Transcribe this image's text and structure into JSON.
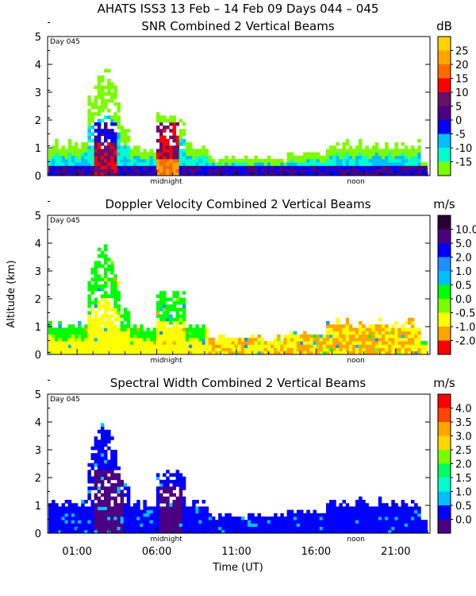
{
  "figure": {
    "title": "AHATS ISS3  13 Feb – 14 Feb 09 Days 044 – 045",
    "shared_ylabel": "Altitude (km)",
    "shared_xlabel": "Time (UT)",
    "x_tick_labels": [
      "01:00",
      "06:00",
      "11:00",
      "16:00",
      "21:00"
    ],
    "y_tick_labels": [
      "0",
      "1",
      "2",
      "3",
      "4",
      "5"
    ],
    "day_label": "Day 045",
    "midnight_label": "midnight",
    "noon_label": "noon"
  },
  "colors": {
    "palette": [
      "#4B0082",
      "#3b1a8e",
      "#0000ff",
      "#1e90ff",
      "#00bfff",
      "#00ff00",
      "#7cfc00",
      "#ffff00",
      "#ffa500",
      "#ff4500",
      "#ff0000",
      "#2a0033"
    ]
  },
  "chart_data": [
    {
      "type": "heatmap",
      "title": "SNR Combined 2 Vertical Beams",
      "unit": "dB",
      "xlabel": "",
      "ylabel": "Altitude (km)",
      "xlim_hours_ut": [
        0,
        24
      ],
      "ylim_km": [
        0,
        5
      ],
      "colorbar": {
        "tick_labels": [
          "25",
          "20",
          "15",
          "10",
          "5",
          "0",
          "-5",
          "-10",
          "-15"
        ],
        "colors": [
          "#ffd200",
          "#ffa500",
          "#ff6a00",
          "#ff0000",
          "#6a0f6a",
          "#4b0082",
          "#0000ff",
          "#00bfff",
          "#00ffcc",
          "#7cfc00"
        ]
      }
    },
    {
      "type": "heatmap",
      "title": "Doppler Velocity Combined 2 Vertical Beams",
      "unit": "m/s",
      "xlabel": "",
      "ylabel": "Altitude (km)",
      "xlim_hours_ut": [
        0,
        24
      ],
      "ylim_km": [
        0,
        5
      ],
      "colorbar": {
        "tick_labels": [
          "10.0",
          "5.0",
          "2.0",
          "1.0",
          "0.5",
          "0.0",
          "-0.5",
          "-1.0",
          "-2.0"
        ],
        "colors": [
          "#2a0033",
          "#4b0082",
          "#0000ff",
          "#1e90ff",
          "#00bfff",
          "#00ff00",
          "#7cfc00",
          "#ffff00",
          "#ffa500",
          "#ff0000"
        ]
      }
    },
    {
      "type": "heatmap",
      "title": "Spectral Width Combined 2 Vertical Beams",
      "unit": "m/s",
      "xlabel": "Time (UT)",
      "ylabel": "",
      "xlim_hours_ut": [
        0,
        24
      ],
      "ylim_km": [
        0,
        5
      ],
      "colorbar": {
        "tick_labels": [
          "4.0",
          "3.5",
          "3.0",
          "2.5",
          "2.0",
          "1.5",
          "1.0",
          "0.5",
          "0.0"
        ],
        "colors": [
          "#ff0000",
          "#ff4500",
          "#ffa500",
          "#ffd700",
          "#7cfc00",
          "#00ff66",
          "#00ffcc",
          "#00bfff",
          "#0000ff",
          "#4b0082"
        ]
      }
    }
  ]
}
